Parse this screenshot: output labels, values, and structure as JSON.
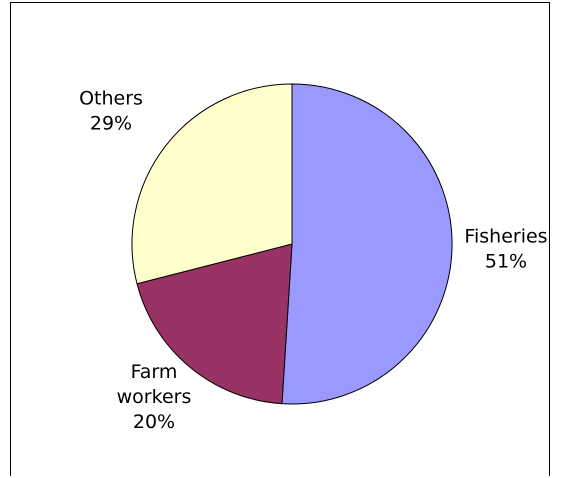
{
  "chart_data": {
    "type": "pie",
    "slices": [
      {
        "label_lines": [
          "Fisheries",
          "51%"
        ],
        "value": 51,
        "color": "#9999ff"
      },
      {
        "label_lines": [
          "Farm",
          "workers",
          "20%"
        ],
        "value": 20,
        "color": "#993366"
      },
      {
        "label_lines": [
          "Others",
          "29%"
        ],
        "value": 29,
        "color": "#ffffcc"
      }
    ],
    "start_angle_deg": 0,
    "direction": "clockwise",
    "legend": "none"
  }
}
